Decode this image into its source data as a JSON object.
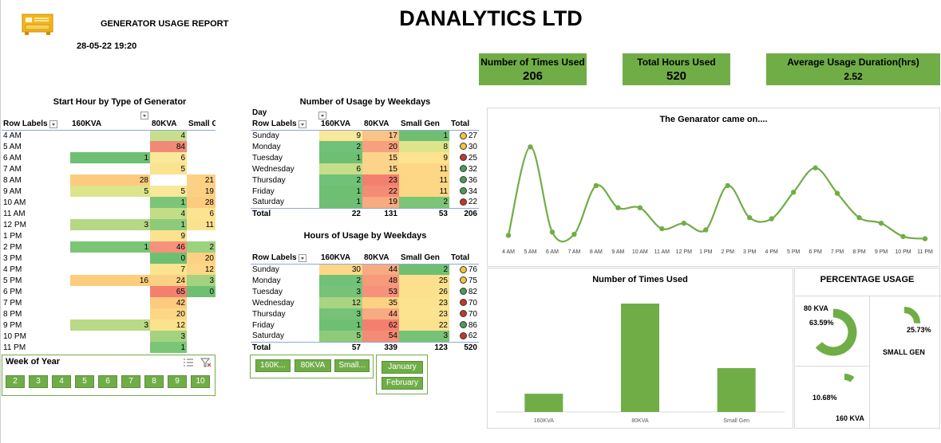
{
  "header": {
    "report_title": "GENERATOR USAGE REPORT",
    "datetime": "28-05-22 19:20",
    "company": "DANALYTICS LTD",
    "logo_icon": "generator-icon"
  },
  "kpis": [
    {
      "label": "Number of Times Used",
      "value": "206"
    },
    {
      "label": "Total Hours Used",
      "value": "520"
    },
    {
      "label": "Average Usage Duration(hrs)",
      "value": "2.52"
    }
  ],
  "start_hour": {
    "title": "Start Hour by Type of Generator",
    "row_label": "Row Labels",
    "cols": [
      "160KVA",
      "80KVA",
      "Small Gen"
    ],
    "rows": [
      [
        "4 AM",
        "",
        "4",
        ""
      ],
      [
        "5 AM",
        "",
        "84",
        ""
      ],
      [
        "6 AM",
        "1",
        "6",
        ""
      ],
      [
        "7 AM",
        "",
        "5",
        ""
      ],
      [
        "8 AM",
        "28",
        "",
        "21"
      ],
      [
        "9 AM",
        "5",
        "5",
        "19"
      ],
      [
        "10 AM",
        "",
        "1",
        "28"
      ],
      [
        "11 AM",
        "",
        "4",
        "6"
      ],
      [
        "12 PM",
        "3",
        "1",
        "11"
      ],
      [
        "1 PM",
        "",
        "9",
        ""
      ],
      [
        "2 PM",
        "1",
        "46",
        "2"
      ],
      [
        "3 PM",
        "",
        "0",
        "20"
      ],
      [
        "4 PM",
        "",
        "7",
        "12"
      ],
      [
        "5 PM",
        "16",
        "24",
        "3"
      ],
      [
        "6 PM",
        "",
        "65",
        "0"
      ],
      [
        "7 PM",
        "",
        "42",
        ""
      ],
      [
        "8 PM",
        "",
        "20",
        ""
      ],
      [
        "9 PM",
        "3",
        "12",
        ""
      ],
      [
        "10 PM",
        "",
        "3",
        ""
      ],
      [
        "11 PM",
        "",
        "1",
        ""
      ]
    ],
    "colors": [
      [
        "",
        "#c7df8c",
        ""
      ],
      [
        "",
        "#f08a78",
        ""
      ],
      [
        "#6fbf73",
        "#f9e79a",
        ""
      ],
      [
        "",
        "#fae38f",
        ""
      ],
      [
        "#fdcb7f",
        "",
        "#fdd184"
      ],
      [
        "#dde58a",
        "#f9e79a",
        "#fdd184"
      ],
      [
        "",
        "#7bc576",
        "#fdcb7f"
      ],
      [
        "",
        "#c2dd88",
        "#fce38f"
      ],
      [
        "#b6d884",
        "#8dcb7b",
        "#fbe28e"
      ],
      [
        "",
        "#fbe28e",
        ""
      ],
      [
        "#7bc576",
        "#f6927b",
        "#9ad27f"
      ],
      [
        "",
        "#6fbf73",
        "#fdd184"
      ],
      [
        "",
        "#fce38f",
        "#fdd785"
      ],
      [
        "#fdcd7e",
        "#fdd184",
        "#a4d380"
      ],
      [
        "",
        "#f3806f",
        "#6fbf73"
      ],
      [
        "",
        "#fccb7f",
        ""
      ],
      [
        "",
        "#fdd785",
        ""
      ],
      [
        "#b9d984",
        "#fbe28e",
        ""
      ],
      [
        "",
        "#a4d380",
        ""
      ],
      [
        "",
        "#7bc576",
        ""
      ]
    ]
  },
  "weekday_count": {
    "title": "Number of Usage by Weekdays",
    "col_field": "Day",
    "row_label": "Row Labels",
    "cols": [
      "160KVA",
      "80KVA",
      "Small Gen",
      "Total"
    ],
    "rows": [
      {
        "day": "Sunday",
        "v": [
          "9",
          "17",
          "1"
        ],
        "total": "27",
        "dot": "y",
        "c": [
          "#f9e79a",
          "#f9c486",
          "#6fbf73"
        ]
      },
      {
        "day": "Monday",
        "v": [
          "2",
          "20",
          "8"
        ],
        "total": "30",
        "dot": "y",
        "c": [
          "#71c17a",
          "#f7a07e",
          "#dde58a"
        ]
      },
      {
        "day": "Tuesday",
        "v": [
          "1",
          "15",
          "9"
        ],
        "total": "25",
        "dot": "r",
        "c": [
          "#6fbf73",
          "#fcd38a",
          "#fce38f"
        ]
      },
      {
        "day": "Wednesday",
        "v": [
          "6",
          "15",
          "11"
        ],
        "total": "32",
        "dot": "g",
        "c": [
          "#c5de88",
          "#fcd38a",
          "#fdd785"
        ]
      },
      {
        "day": "Thursday",
        "v": [
          "2",
          "23",
          "11"
        ],
        "total": "36",
        "dot": "g",
        "c": [
          "#71c17a",
          "#f3806f",
          "#fdd785"
        ]
      },
      {
        "day": "Friday",
        "v": [
          "1",
          "22",
          "11"
        ],
        "total": "34",
        "dot": "g",
        "c": [
          "#6fbf73",
          "#f48b75",
          "#fdd785"
        ]
      },
      {
        "day": "Saturday",
        "v": [
          "1",
          "19",
          "2"
        ],
        "total": "22",
        "dot": "r",
        "c": [
          "#6fbf73",
          "#f8aa80",
          "#7bc576"
        ]
      }
    ],
    "totals": [
      "Total",
      "22",
      "131",
      "53",
      "206"
    ]
  },
  "weekday_hours": {
    "title": "Hours of Usage by Weekdays",
    "row_label": "Row Labels",
    "cols": [
      "160KVA",
      "80KVA",
      "Small Gen",
      "Total"
    ],
    "rows": [
      {
        "day": "Sunday",
        "v": [
          "30",
          "44",
          "2"
        ],
        "total": "76",
        "dot": "y",
        "c": [
          "#fdd785",
          "#f8aa80",
          "#6fbf73"
        ]
      },
      {
        "day": "Monday",
        "v": [
          "2",
          "48",
          "25"
        ],
        "total": "75",
        "dot": "y",
        "c": [
          "#71c17a",
          "#f79a7c",
          "#fde08e"
        ]
      },
      {
        "day": "Tuesday",
        "v": [
          "3",
          "53",
          "26"
        ],
        "total": "82",
        "dot": "g",
        "c": [
          "#76c276",
          "#f6927b",
          "#fde08e"
        ]
      },
      {
        "day": "Wednesday",
        "v": [
          "12",
          "35",
          "23"
        ],
        "total": "70",
        "dot": "r",
        "c": [
          "#a9d481",
          "#fdd184",
          "#fce38f"
        ]
      },
      {
        "day": "Thursday",
        "v": [
          "3",
          "44",
          "23"
        ],
        "total": "70",
        "dot": "r",
        "c": [
          "#76c276",
          "#f8aa80",
          "#fce38f"
        ]
      },
      {
        "day": "Friday",
        "v": [
          "1",
          "62",
          "22"
        ],
        "total": "86",
        "dot": "g",
        "c": [
          "#6fbf73",
          "#f3806f",
          "#fbe28e"
        ]
      },
      {
        "day": "Saturday",
        "v": [
          "5",
          "54",
          "3"
        ],
        "total": "62",
        "dot": "r",
        "c": [
          "#8dcb7b",
          "#f48b75",
          "#76c276"
        ]
      }
    ],
    "totals": [
      "Total",
      "57",
      "339",
      "123",
      "520"
    ]
  },
  "slicers": {
    "week": {
      "title": "Week of Year",
      "items": [
        "2",
        "3",
        "4",
        "5",
        "6",
        "7",
        "8",
        "9",
        "10"
      ]
    },
    "gen_type": {
      "items": [
        "160K...",
        "80KVA",
        "Small..."
      ]
    },
    "month": {
      "items": [
        "January",
        "February"
      ]
    }
  },
  "line_chart": {
    "title": "The Genarator came on....",
    "color": "#70ad47"
  },
  "bar_chart": {
    "title": "Number of Times Used",
    "color": "#70ad47"
  },
  "percentage": {
    "title": "PERCENTAGE USAGE",
    "items": [
      {
        "label": "80 KVA",
        "pct": "63.59%",
        "frac": 0.6359
      },
      {
        "label": "SMALL GEN",
        "pct": "25.73%",
        "frac": 0.2573
      },
      {
        "label": "160 KVA",
        "pct": "10.68%",
        "frac": 0.1068
      }
    ]
  },
  "chart_data": [
    {
      "type": "line",
      "title": "The Genarator came on....",
      "categories": [
        "4 AM",
        "5 AM",
        "6 AM",
        "7 AM",
        "8 AM",
        "9 AM",
        "10 AM",
        "11 AM",
        "12 PM",
        "1 PM",
        "2 PM",
        "3 PM",
        "4 PM",
        "5 PM",
        "6 PM",
        "7 PM",
        "8 PM",
        "9 PM",
        "10 PM",
        "11 PM"
      ],
      "values": [
        4,
        84,
        7,
        5,
        49,
        29,
        29,
        10,
        15,
        9,
        49,
        20,
        19,
        43,
        65,
        42,
        20,
        15,
        3,
        1
      ]
    },
    {
      "type": "bar",
      "title": "Number of Times Used",
      "categories": [
        "160KVA",
        "80KVA",
        "Small Gen"
      ],
      "values": [
        22,
        131,
        53
      ]
    }
  ]
}
